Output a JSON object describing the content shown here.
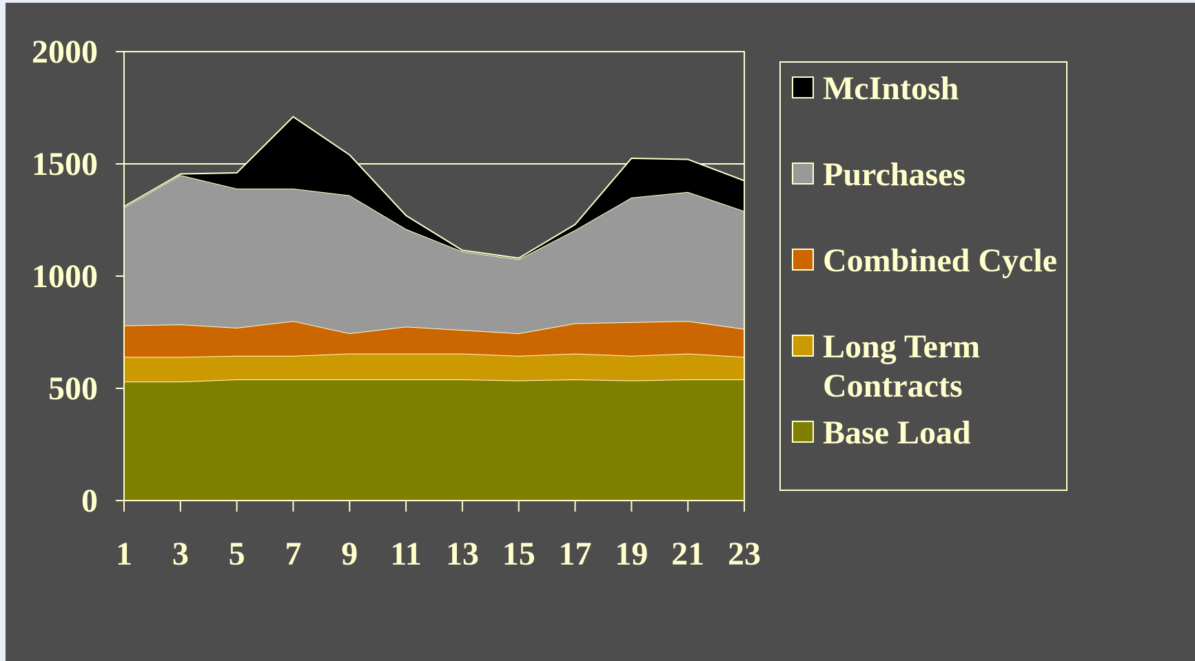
{
  "chart_data": {
    "type": "area",
    "stacked": true,
    "title": "",
    "xlabel": "",
    "ylabel": "",
    "x": [
      1,
      3,
      5,
      7,
      9,
      11,
      13,
      15,
      17,
      19,
      21,
      23
    ],
    "x_tick_labels": [
      "1",
      "3",
      "5",
      "7",
      "9",
      "11",
      "13",
      "15",
      "17",
      "19",
      "21",
      "23"
    ],
    "y_tick_labels": [
      "0",
      "500",
      "1000",
      "1500",
      "2000"
    ],
    "ylim": [
      0,
      2000
    ],
    "grid": "horizontal",
    "legend_position": "right",
    "series": [
      {
        "name": "Base Load",
        "color": "#808000",
        "values": [
          530,
          530,
          540,
          540,
          540,
          540,
          540,
          535,
          540,
          535,
          540,
          540
        ]
      },
      {
        "name": "Long Term Contracts",
        "color": "#cc9900",
        "values": [
          110,
          110,
          105,
          105,
          115,
          115,
          115,
          110,
          115,
          110,
          115,
          100
        ]
      },
      {
        "name": "Combined Cycle",
        "color": "#cc6600",
        "values": [
          140,
          145,
          125,
          155,
          90,
          120,
          105,
          100,
          135,
          150,
          145,
          125
        ]
      },
      {
        "name": "Purchases",
        "color": "#999999",
        "values": [
          525,
          665,
          620,
          590,
          615,
          435,
          350,
          330,
          415,
          555,
          575,
          525
        ]
      },
      {
        "name": "McIntosh",
        "color": "#000000",
        "values": [
          5,
          5,
          70,
          320,
          180,
          60,
          5,
          5,
          25,
          175,
          145,
          135
        ]
      }
    ],
    "legend_order": [
      "McIntosh",
      "Purchases",
      "Combined Cycle",
      "Long Term Contracts",
      "Base Load"
    ],
    "legend_lines": {
      "McIntosh": [
        "McIntosh"
      ],
      "Purchases": [
        "Purchases"
      ],
      "Combined Cycle": [
        "Combined Cycle"
      ],
      "Long Term Contracts": [
        "Long Term",
        "Contracts"
      ],
      "Base Load": [
        "Base Load"
      ]
    },
    "axis_color": "#ffffcc",
    "background_color": "#4d4d4d"
  }
}
